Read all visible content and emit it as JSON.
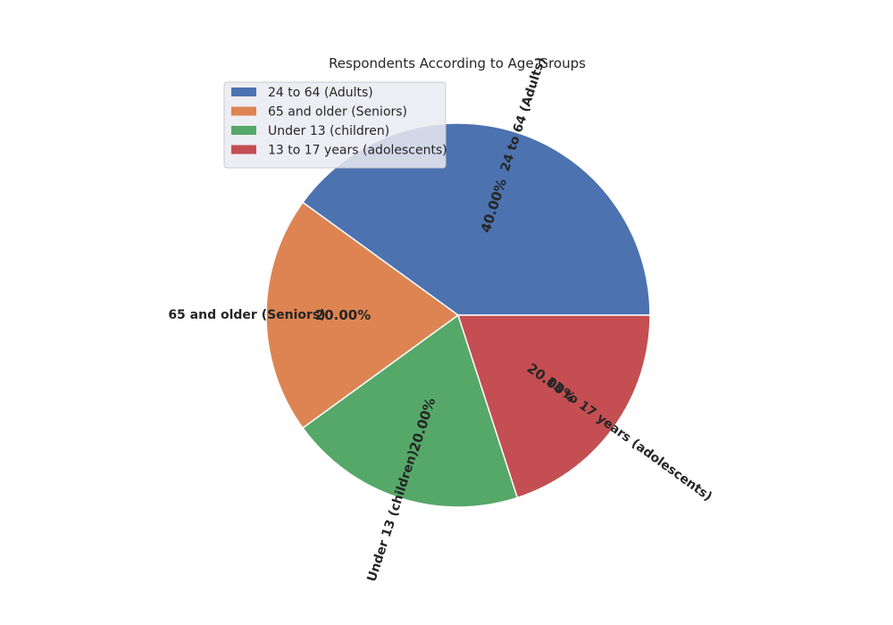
{
  "chart_data": {
    "type": "pie",
    "title": "Respondents According to Age Groups",
    "categories": [
      "24 to 64 (Adults)",
      "65 and older (Seniors)",
      "Under 13 (children)",
      "13 to 17 years (adolescents)"
    ],
    "values": [
      40,
      20,
      20,
      20
    ],
    "percent_labels": [
      "40.00%",
      "20.00%",
      "20.00%",
      "20.00%"
    ],
    "colors": [
      "#4c72b0",
      "#dd8452",
      "#55a868",
      "#c44e52"
    ],
    "start_angle_deg": 0,
    "direction": "counterclockwise",
    "legend": {
      "placement": "upper-left",
      "entries": [
        "24 to 64 (Adults)",
        "65 and older (Seniors)",
        "Under 13 (children)",
        "13 to 17 years (adolescents)"
      ]
    }
  }
}
